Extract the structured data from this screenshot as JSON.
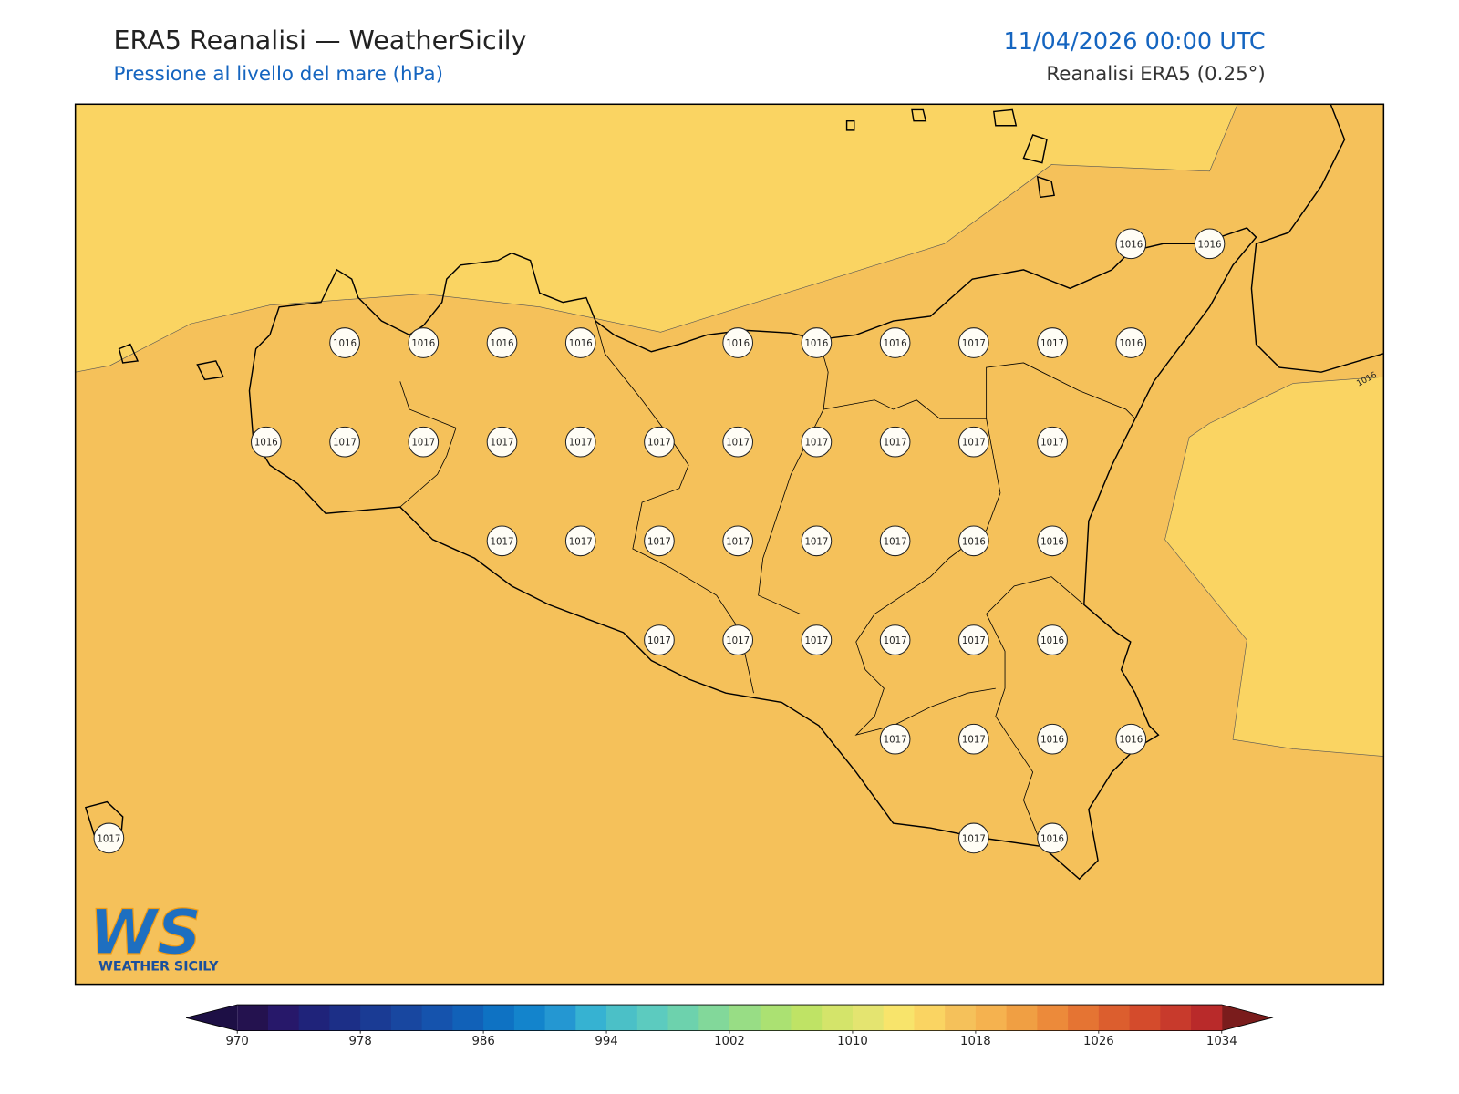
{
  "header": {
    "title": "ERA5 Reanalisi — WeatherSicily",
    "subtitle": "Pressione al livello del mare (hPa)",
    "datetime": "11/04/2026 00:00 UTC",
    "source": "Reanalisi ERA5 (0.25°)"
  },
  "map": {
    "contour_label": 1016,
    "stations": [
      [
        null,
        null,
        null,
        null,
        null,
        null,
        null,
        null,
        null,
        null,
        null,
        null,
        null,
        1016,
        1016
      ],
      [
        null,
        null,
        null,
        1016,
        1016,
        1016,
        1016,
        null,
        1016,
        1016,
        1016,
        1017,
        1017,
        1016,
        null
      ],
      [
        null,
        null,
        1016,
        1017,
        1017,
        1017,
        1017,
        1017,
        1017,
        1017,
        1017,
        1017,
        1017,
        null,
        null
      ],
      [
        null,
        null,
        null,
        null,
        null,
        1017,
        1017,
        1017,
        1017,
        1017,
        1017,
        1016,
        1016,
        null,
        null
      ],
      [
        null,
        null,
        null,
        null,
        null,
        null,
        null,
        1017,
        1017,
        1017,
        1017,
        1017,
        1016,
        null,
        null
      ],
      [
        null,
        null,
        null,
        null,
        null,
        null,
        null,
        null,
        null,
        null,
        1017,
        1017,
        1016,
        1016,
        null
      ],
      [
        1017,
        null,
        null,
        null,
        null,
        null,
        null,
        null,
        null,
        null,
        null,
        1017,
        1016,
        null,
        null
      ]
    ]
  },
  "logo": {
    "mark": "WS",
    "text": "WEATHER SICILY"
  },
  "colorbar": {
    "lim": [
      970,
      1034
    ],
    "ticks": [
      970,
      978,
      986,
      994,
      1002,
      1010,
      1018,
      1026,
      1034
    ],
    "under_color": "#1d0f45",
    "over_color": "#7a1c1c",
    "colors": [
      "#24124f",
      "#27186a",
      "#1f237a",
      "#1c2f87",
      "#1a3b94",
      "#1847a0",
      "#1553ad",
      "#1161b8",
      "#0e72c3",
      "#1384cc",
      "#2497d2",
      "#36b2d2",
      "#4bc0c7",
      "#5ccbbf",
      "#6dd2ad",
      "#82d89a",
      "#98dd85",
      "#abe172",
      "#bfe365",
      "#d4e46a",
      "#e4e470",
      "#f8e46b",
      "#fad462",
      "#f5c15a",
      "#f5b24f",
      "#f09f43",
      "#ec8a3a",
      "#e57433",
      "#dc5e2e",
      "#d44b2c",
      "#c83a2c",
      "#b92a2a"
    ]
  }
}
